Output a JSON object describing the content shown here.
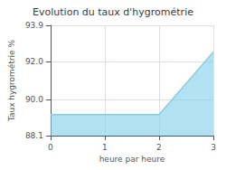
{
  "chart_data": {
    "type": "area",
    "title": "Evolution du taux d'hygrométrie",
    "xlabel": "heure par heure",
    "ylabel": "Taux hygrométrie %",
    "x": [
      0,
      1,
      2,
      3
    ],
    "values": [
      89.2,
      89.2,
      89.2,
      92.5
    ],
    "color": "#7ecfea",
    "xlim": [
      0,
      3
    ],
    "ylim": [
      88.1,
      93.9
    ],
    "xticks": [
      0,
      1,
      2,
      3
    ],
    "yticks": [
      88.1,
      {
        "value": 90.0,
        "label": "90.0"
      },
      {
        "value": 92.0,
        "label": "92.0"
      },
      93.9
    ],
    "grid": true
  }
}
